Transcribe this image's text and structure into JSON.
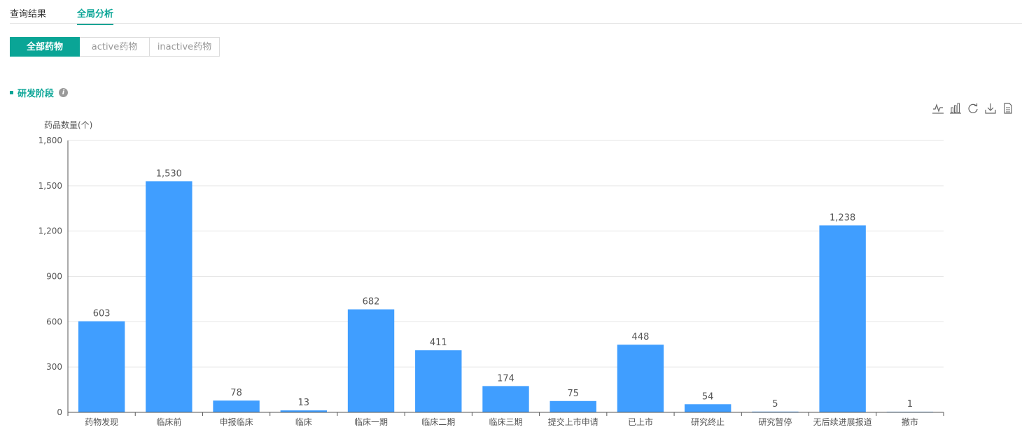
{
  "tabs": {
    "items": [
      {
        "label": "查询结果",
        "active": false
      },
      {
        "label": "全局分析",
        "active": true
      }
    ]
  },
  "filter": {
    "buttons": [
      {
        "label": "全部药物",
        "active": true
      },
      {
        "label": "active药物",
        "active": false
      },
      {
        "label": "inactive药物",
        "active": false
      }
    ]
  },
  "section": {
    "title": "研发阶段",
    "info_icon": "info-icon"
  },
  "toolbox": {
    "icons": [
      "line-chart-icon",
      "bar-chart-icon",
      "refresh-icon",
      "download-icon",
      "data-view-icon"
    ]
  },
  "colors": {
    "accent": "#0aa596",
    "bar": "#409eff",
    "grid": "#e6e6e6",
    "axis": "#555555"
  },
  "chart_data": {
    "type": "bar",
    "ylabel": "药品数量(个)",
    "ylim": [
      0,
      1800
    ],
    "yticks": [
      0,
      300,
      600,
      900,
      1200,
      1500,
      1800
    ],
    "yticklabels": [
      "0",
      "300",
      "600",
      "900",
      "1,200",
      "1,500",
      "1,800"
    ],
    "grid": true,
    "categories": [
      "药物发现",
      "临床前",
      "申报临床",
      "临床",
      "临床一期",
      "临床二期",
      "临床三期",
      "提交上市申请",
      "已上市",
      "研究终止",
      "研究暂停",
      "无后续进展报道",
      "撤市"
    ],
    "values": [
      603,
      1530,
      78,
      13,
      682,
      411,
      174,
      75,
      448,
      54,
      5,
      1238,
      1
    ],
    "value_labels": [
      "603",
      "1,530",
      "78",
      "13",
      "682",
      "411",
      "174",
      "75",
      "448",
      "54",
      "5",
      "1,238",
      "1"
    ]
  }
}
